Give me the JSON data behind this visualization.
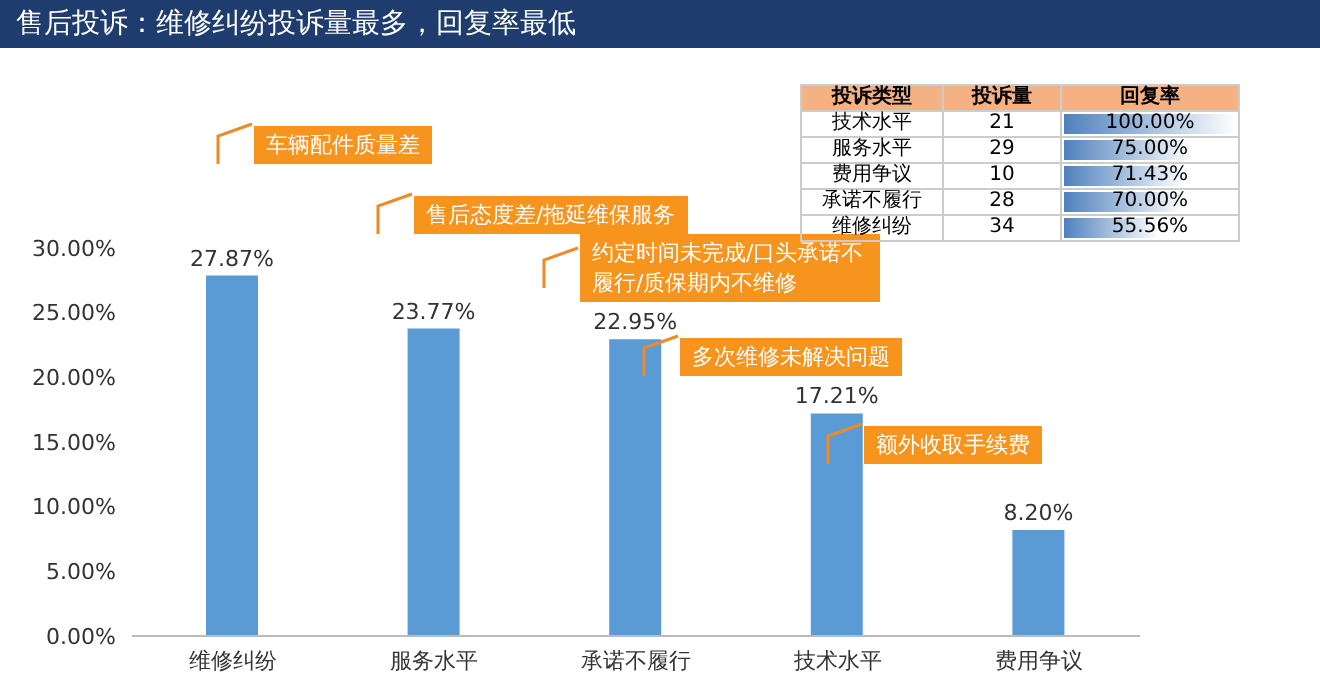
{
  "chart_data": [
    {
      "type": "bar",
      "title": "售后投诉：维修纠纷投诉量最多，回复率最低",
      "categories": [
        "维修纠纷",
        "服务水平",
        "承诺不履行",
        "技术水平",
        "费用争议"
      ],
      "values": [
        27.87,
        23.77,
        22.95,
        17.21,
        8.2
      ],
      "value_labels": [
        "27.87%",
        "23.77%",
        "22.95%",
        "17.21%",
        "8.20%"
      ],
      "color": "#5b9bd5",
      "ylim": [
        0,
        30
      ],
      "yticks": [
        {
          "value": 0,
          "label": "0.00%"
        },
        {
          "value": 5,
          "label": "5.00%"
        },
        {
          "value": 10,
          "label": "10.00%"
        },
        {
          "value": 15,
          "label": "15.00%"
        },
        {
          "value": 20,
          "label": "20.00%"
        },
        {
          "value": 25,
          "label": "25.00%"
        },
        {
          "value": 30,
          "label": "30.00%"
        }
      ],
      "grid": false,
      "legend": false,
      "annotations": [
        "车辆配件质量差",
        "售后态度差/拖延维保服务",
        "约定时间未完成/口头承诺不履行/质保期内不维修",
        "多次维修未解决问题",
        "额外收取手续费"
      ]
    },
    {
      "type": "other",
      "ylabel": "投诉类型",
      "data_labels": true,
      "categories": [
        "技术水平",
        "服务水平",
        "费用争议",
        "承诺不履行",
        "维修纠纷"
      ],
      "series": [
        {
          "name": "投诉量",
          "values": [
            21,
            29,
            10,
            28,
            34
          ]
        },
        {
          "name": "回复率",
          "color": "#4f81bd",
          "values": [
            100,
            75,
            71.43,
            70,
            55.56
          ],
          "value_labels": [
            "100.00%",
            "75.00%",
            "71.43%",
            "70.00%",
            "55.56%"
          ]
        }
      ]
    }
  ]
}
